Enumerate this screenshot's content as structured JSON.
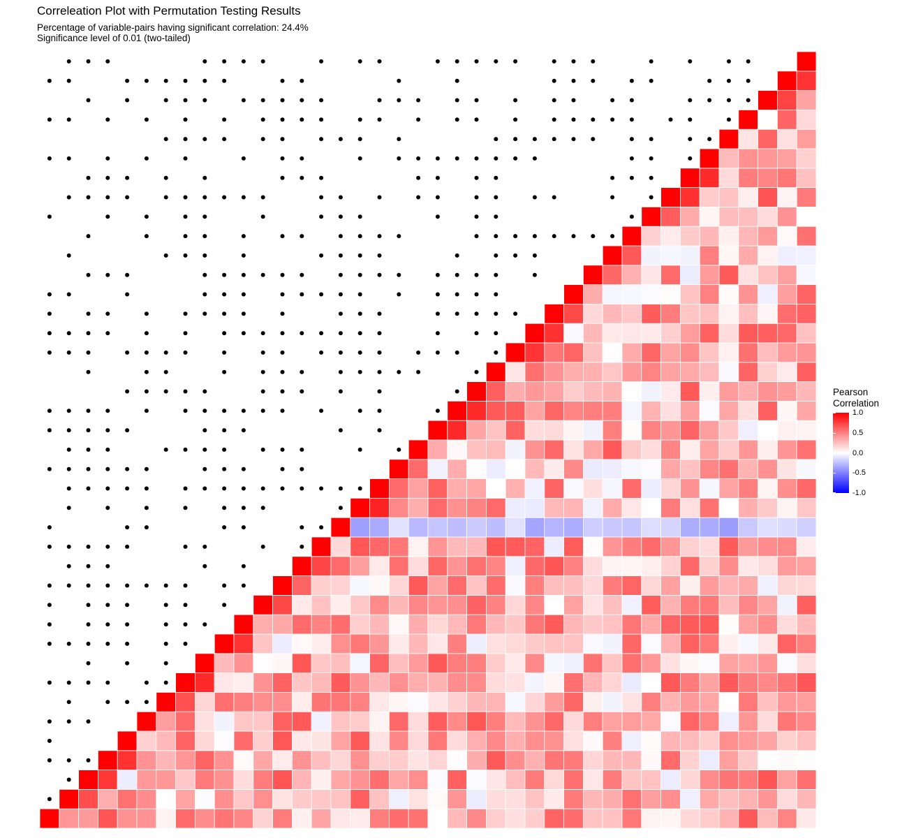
{
  "title": "Correleation Plot with Permutation Testing Results",
  "subtitle_line1": "Percentage of variable-pairs having significant correlation: 24.4%",
  "subtitle_line2": "Significance level of 0.01 (two-tailed)",
  "legend": {
    "title_line1": "Pearson",
    "title_line2": "Correlation",
    "labels": [
      "1.0",
      "0.5",
      "0.0",
      "-0.5",
      "-1.0"
    ],
    "values": [
      1.0,
      0.5,
      0.0,
      -0.5,
      -1.0
    ]
  },
  "colors": {
    "high": "#ff0000",
    "mid": "#ffffff",
    "low": "#0000ff",
    "dot": "#000000",
    "grid": "#ffffff"
  },
  "chart_data": {
    "type": "heatmap",
    "n_variables": 40,
    "value_range": [
      -1.0,
      1.0
    ],
    "cells": "lower-right triangle shows Pearson correlation; upper-left triangle shows black dots where correlation is significant",
    "diagonal_value": 1.0,
    "significant_pct": 24.4,
    "grid": true
  }
}
